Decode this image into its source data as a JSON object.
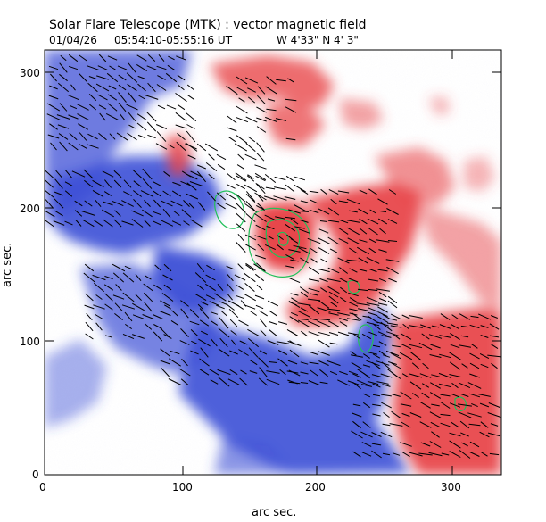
{
  "header": {
    "title": "Solar Flare Telescope (MTK) : vector magnetic field",
    "date": "01/04/26",
    "time_range": "05:54:10-05:55:16 UT",
    "position": "W 4'33\"  N 4' 3\""
  },
  "axes": {
    "xlabel": "arc sec.",
    "ylabel": "arc sec.",
    "x_ticks": [
      "0",
      "100",
      "200",
      "300"
    ],
    "y_ticks": [
      "0",
      "100",
      "200",
      "300"
    ]
  },
  "colors": {
    "positive_polarity": "#e8474b",
    "negative_polarity": "#3c4fd6",
    "contour": "#22c05a",
    "vectors": "#000000"
  }
}
